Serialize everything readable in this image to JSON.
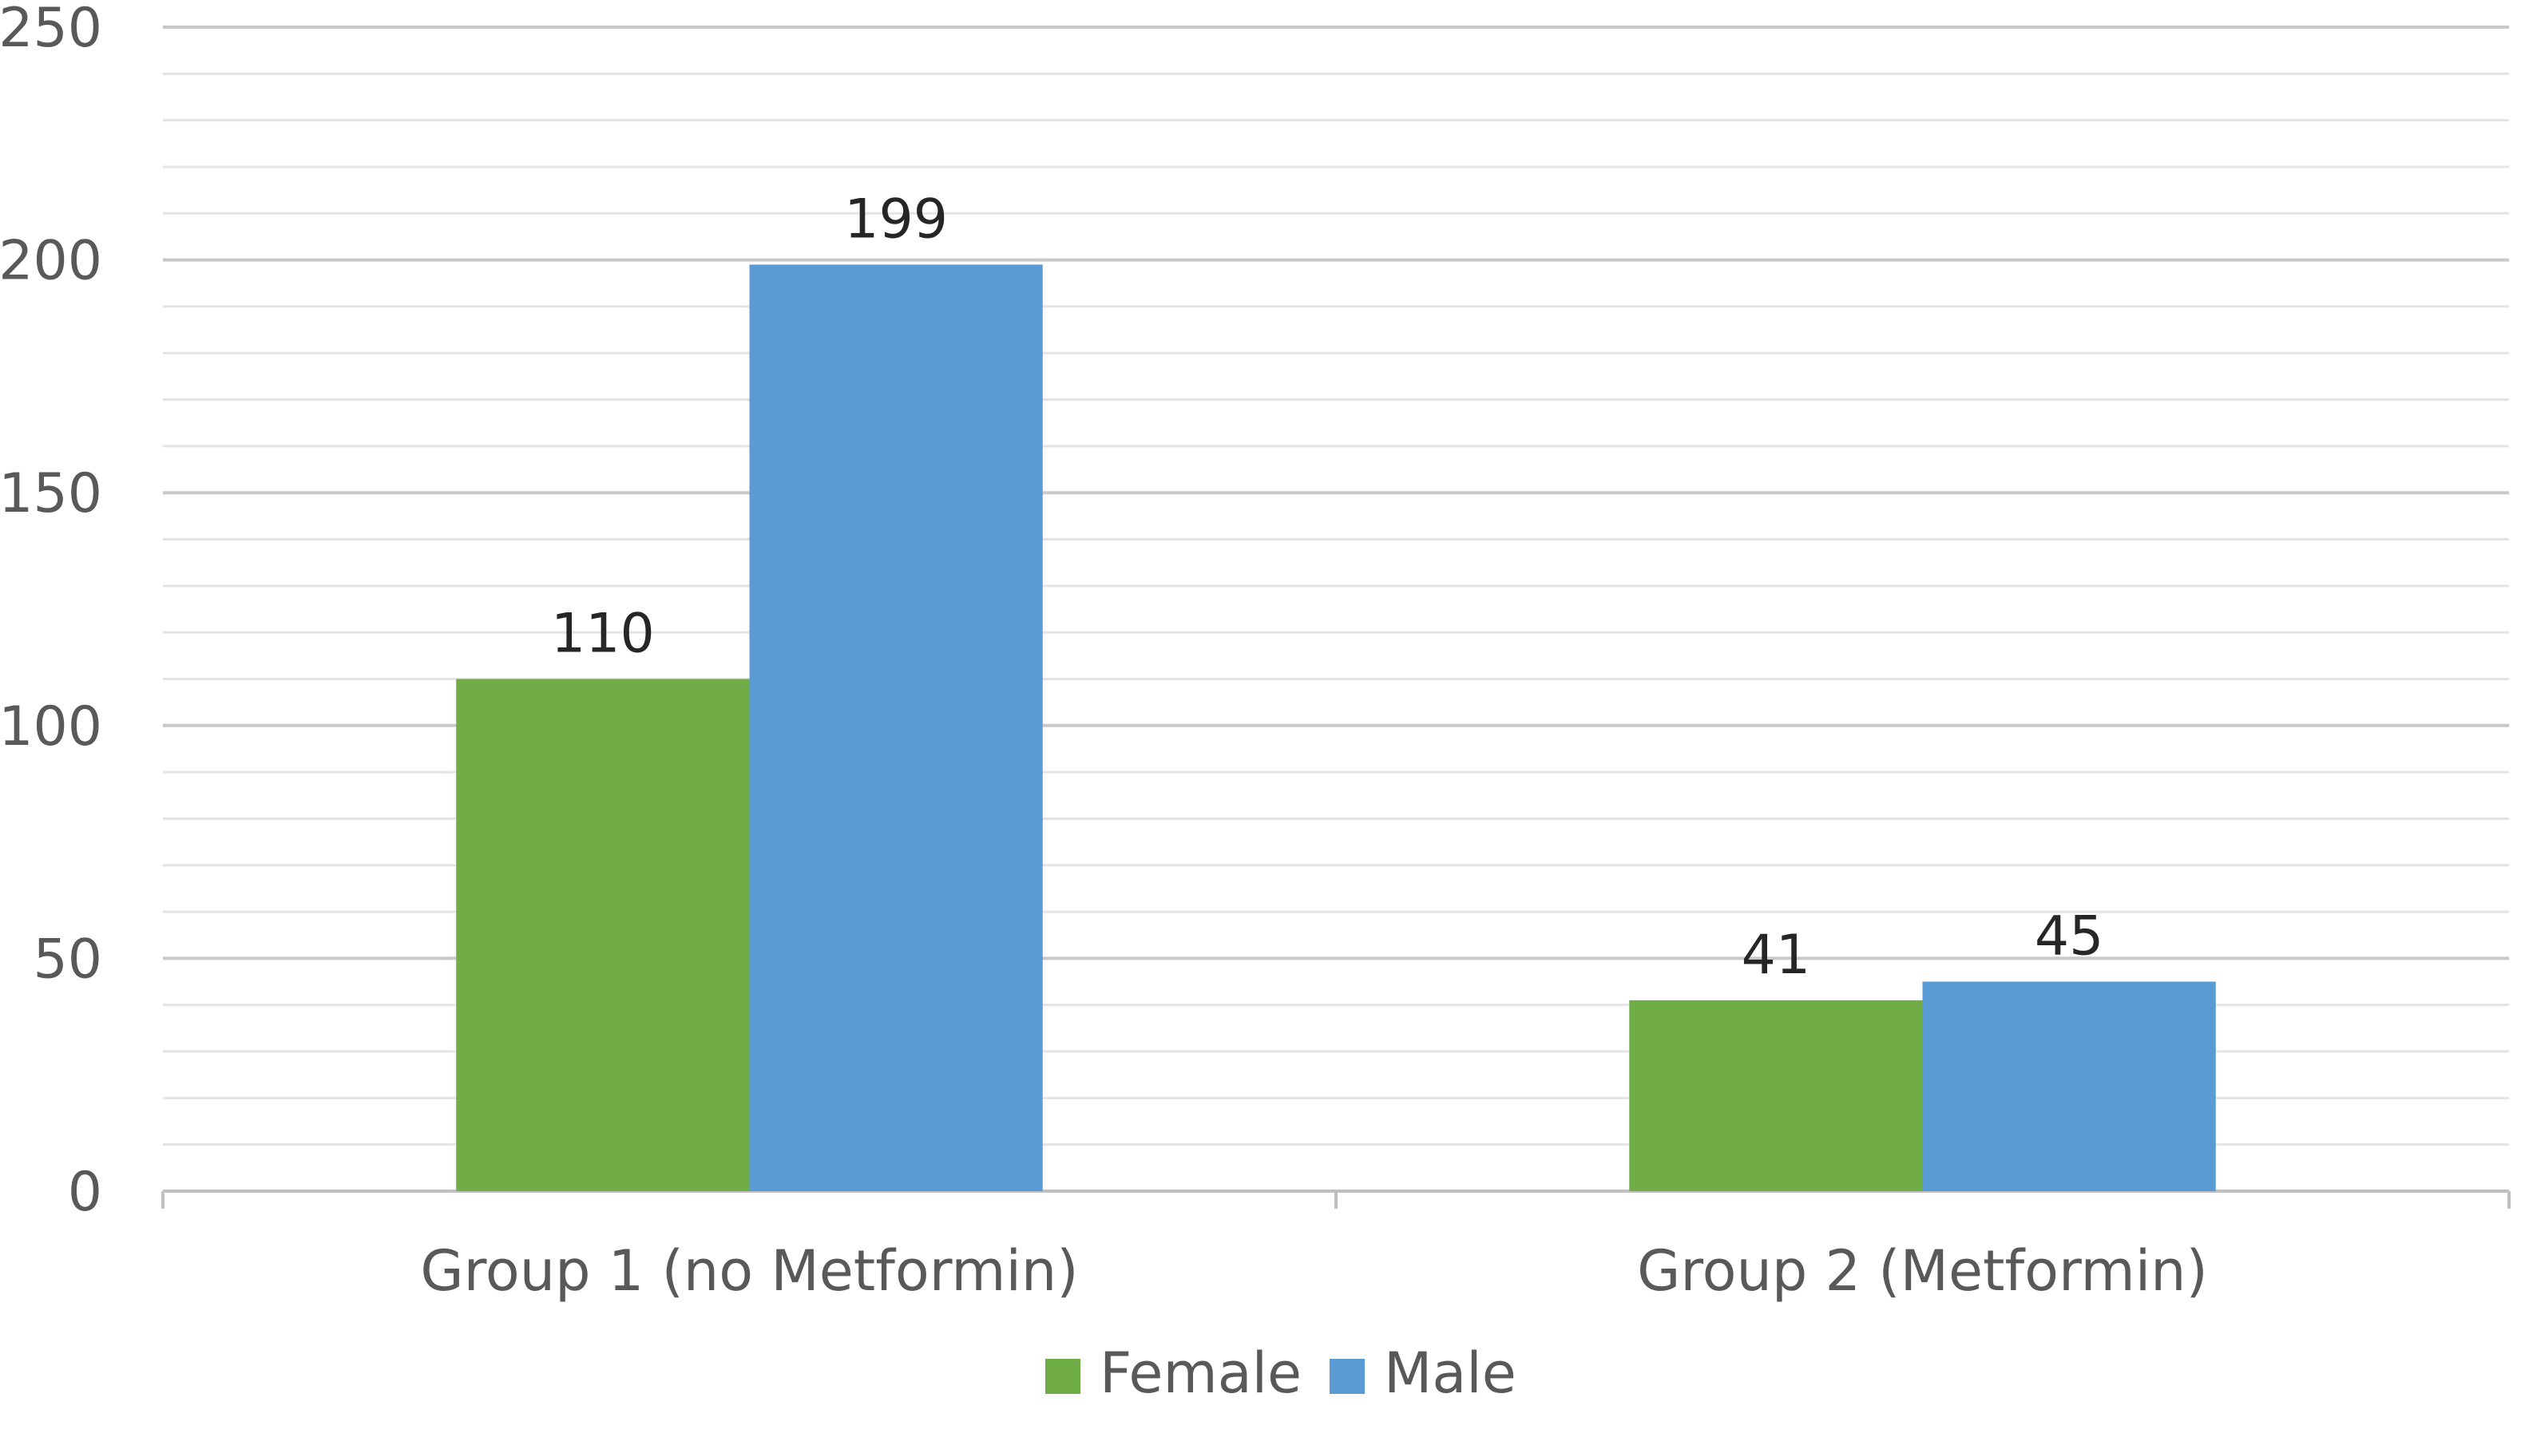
{
  "chart_data": {
    "type": "bar",
    "categories": [
      "Group 1 (no Metformin)",
      "Group 2 (Metformin)"
    ],
    "series": [
      {
        "name": "Female",
        "values": [
          110,
          41
        ],
        "color": "#70AD47"
      },
      {
        "name": "Male",
        "values": [
          199,
          45
        ],
        "color": "#5B9BD5"
      }
    ],
    "title": "",
    "xlabel": "",
    "ylabel": "",
    "ylim": [
      0,
      250
    ],
    "yticks": [
      0,
      50,
      100,
      150,
      200,
      250
    ],
    "y_minor_step": 10,
    "grid": true,
    "legend_position": "bottom",
    "data_labels": true
  }
}
